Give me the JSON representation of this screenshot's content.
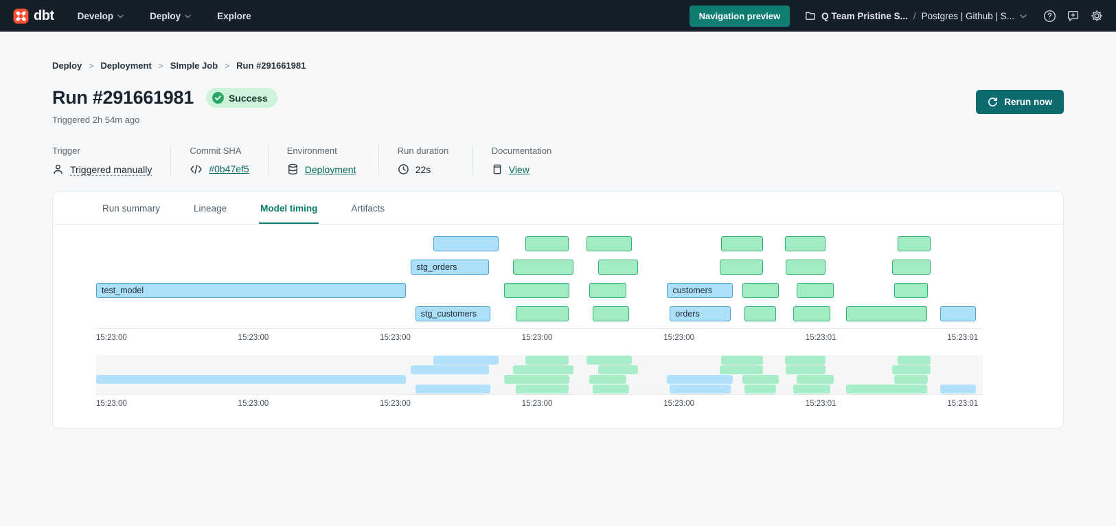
{
  "theme": {
    "nav_bg": "#151f29",
    "accent_teal": "#0e7d72",
    "rerun_button": "#0d6a6e",
    "link_teal": "#09695f",
    "logo_orange": "#ff4f38",
    "status_green": "#2aa767",
    "badge_bg": "#cdf3da"
  },
  "navbar": {
    "logo": "dbt",
    "menu": [
      {
        "label": "Develop",
        "chevron": true
      },
      {
        "label": "Deploy",
        "chevron": true
      },
      {
        "label": "Explore",
        "chevron": false
      }
    ],
    "nav_preview": "Navigation preview",
    "project": "Q Team Pristine S...",
    "path_separator": "/",
    "environment": "Postgres | Github | S..."
  },
  "breadcrumb": {
    "separator": ">",
    "items": [
      "Deploy",
      "Deployment",
      "SImple Job",
      "Run #291661981"
    ]
  },
  "header": {
    "title": "Run #291661981",
    "status_badge": "Success",
    "triggered_text": "Triggered 2h 54m ago",
    "rerun_button": "Rerun now"
  },
  "meta": [
    {
      "label": "Trigger",
      "value": "Triggered manually",
      "icon": "person-icon",
      "style": "dotted",
      "width": "w1"
    },
    {
      "label": "Commit SHA",
      "value": "#0b47ef5",
      "icon": "code-icon",
      "style": "link",
      "width": "w2"
    },
    {
      "label": "Environment",
      "value": "Deployment",
      "icon": "database-icon",
      "style": "link",
      "width": "w3"
    },
    {
      "label": "Run duration",
      "value": "22s",
      "icon": "clock-icon",
      "style": "plain",
      "width": "w4"
    },
    {
      "label": "Documentation",
      "value": "View",
      "icon": "document-icon",
      "style": "link",
      "width": "w5"
    }
  ],
  "tabs": [
    {
      "label": "Run summary",
      "active": false
    },
    {
      "label": "Lineage",
      "active": false
    },
    {
      "label": "Model timing",
      "active": true
    },
    {
      "label": "Artifacts",
      "active": false
    }
  ],
  "chart_data": {
    "type": "gantt",
    "title": "Model timing",
    "axis_ticks": [
      "15:23:00",
      "15:23:00",
      "15:23:00",
      "15:23:00",
      "15:23:00",
      "15:23:01",
      "15:23:01"
    ],
    "tick_spacing_pct": 16,
    "colors": {
      "model_fill": "#aedff8",
      "model_border": "#4aa4d8",
      "test_fill": "#a3ebc3",
      "test_border": "#2eb173",
      "minimap_model_fill": "#b0e0fa",
      "minimap_test_fill": "#a7edc7"
    },
    "rows": [
      [
        {
          "kind": "model",
          "label": "",
          "start": 38.0,
          "width": 7.4
        },
        {
          "kind": "test",
          "label": "",
          "start": 48.4,
          "width": 4.9
        },
        {
          "kind": "test",
          "label": "",
          "start": 55.3,
          "width": 5.1
        },
        {
          "kind": "test",
          "label": "",
          "start": 70.5,
          "width": 4.7
        },
        {
          "kind": "test",
          "label": "",
          "start": 77.7,
          "width": 4.6
        },
        {
          "kind": "test",
          "label": "",
          "start": 90.4,
          "width": 3.7
        }
      ],
      [
        {
          "kind": "model",
          "label": "stg_orders",
          "start": 35.5,
          "width": 8.8
        },
        {
          "kind": "test",
          "label": "",
          "start": 47.0,
          "width": 6.8
        },
        {
          "kind": "test",
          "label": "",
          "start": 56.6,
          "width": 4.5
        },
        {
          "kind": "test",
          "label": "",
          "start": 70.3,
          "width": 4.9
        },
        {
          "kind": "test",
          "label": "",
          "start": 77.8,
          "width": 4.5
        },
        {
          "kind": "test",
          "label": "",
          "start": 89.8,
          "width": 4.3
        }
      ],
      [
        {
          "kind": "model",
          "label": "test_model",
          "start": 0,
          "width": 34.9
        },
        {
          "kind": "test",
          "label": "",
          "start": 46.0,
          "width": 7.4
        },
        {
          "kind": "test",
          "label": "",
          "start": 55.6,
          "width": 4.2
        },
        {
          "kind": "model",
          "label": "customers",
          "start": 64.4,
          "width": 7.4
        },
        {
          "kind": "test",
          "label": "",
          "start": 72.9,
          "width": 4.1
        },
        {
          "kind": "test",
          "label": "",
          "start": 79.0,
          "width": 4.2
        },
        {
          "kind": "test",
          "label": "",
          "start": 90.0,
          "width": 3.8
        }
      ],
      [
        {
          "kind": "model",
          "label": "stg_customers",
          "start": 36.0,
          "width": 8.5
        },
        {
          "kind": "test",
          "label": "",
          "start": 47.3,
          "width": 6.0
        },
        {
          "kind": "test",
          "label": "",
          "start": 56.0,
          "width": 4.1
        },
        {
          "kind": "model",
          "label": "orders",
          "start": 64.7,
          "width": 6.9
        },
        {
          "kind": "test",
          "label": "",
          "start": 73.1,
          "width": 3.6
        },
        {
          "kind": "test",
          "label": "",
          "start": 78.6,
          "width": 4.2
        },
        {
          "kind": "test",
          "label": "",
          "start": 84.6,
          "width": 9.1
        },
        {
          "kind": "model",
          "label": "",
          "start": 95.2,
          "width": 4.0
        }
      ]
    ]
  }
}
